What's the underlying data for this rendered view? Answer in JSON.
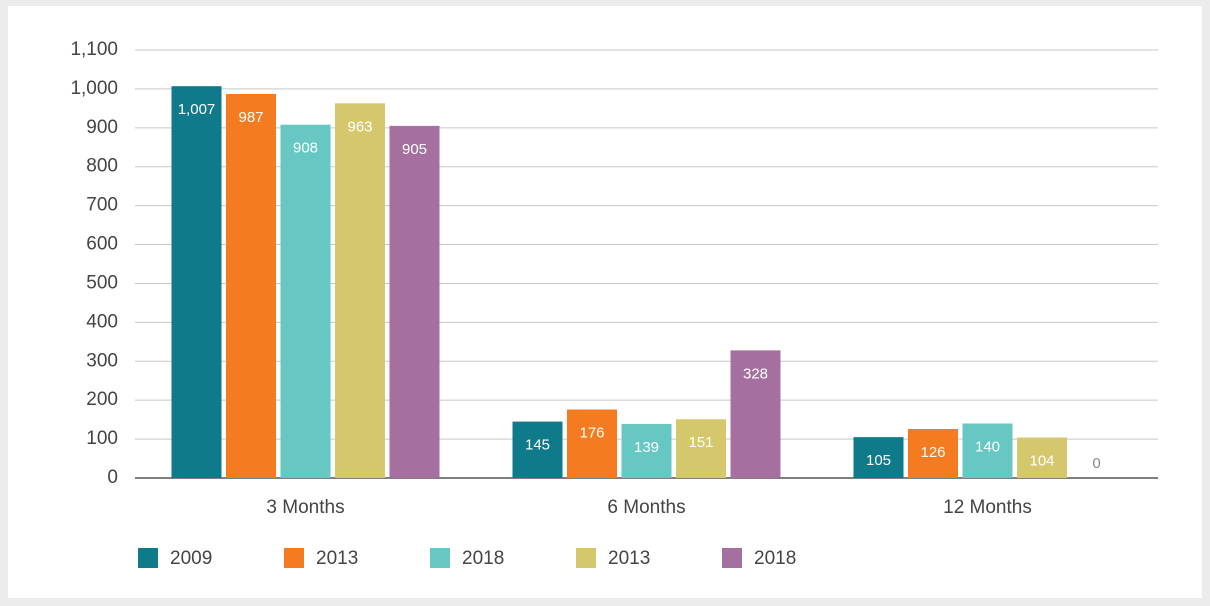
{
  "chart_data": {
    "type": "bar",
    "categories": [
      "3 Months",
      "6 Months",
      "12 Months"
    ],
    "series": [
      {
        "name": "2009",
        "color": "#0f7a8a",
        "values": [
          1007,
          145,
          105
        ],
        "value_labels": [
          "1,007",
          "145",
          "105"
        ]
      },
      {
        "name": "2013",
        "color": "#f47b20",
        "values": [
          987,
          176,
          126
        ]
      },
      {
        "name": "2018",
        "color": "#67c7c2",
        "values": [
          908,
          139,
          140
        ]
      },
      {
        "name": "2013",
        "color": "#d4c76c",
        "values": [
          963,
          151,
          104
        ]
      },
      {
        "name": "2018",
        "color": "#a5709f",
        "values": [
          905,
          328,
          0
        ]
      }
    ],
    "ylim": [
      0,
      1100
    ],
    "yticks": [
      0,
      100,
      200,
      300,
      400,
      500,
      600,
      700,
      800,
      900,
      {
        "value": 1000,
        "label": "1,000"
      },
      {
        "value": 1100,
        "label": "1,100"
      }
    ],
    "grid": true,
    "legend": "bottom-left"
  }
}
